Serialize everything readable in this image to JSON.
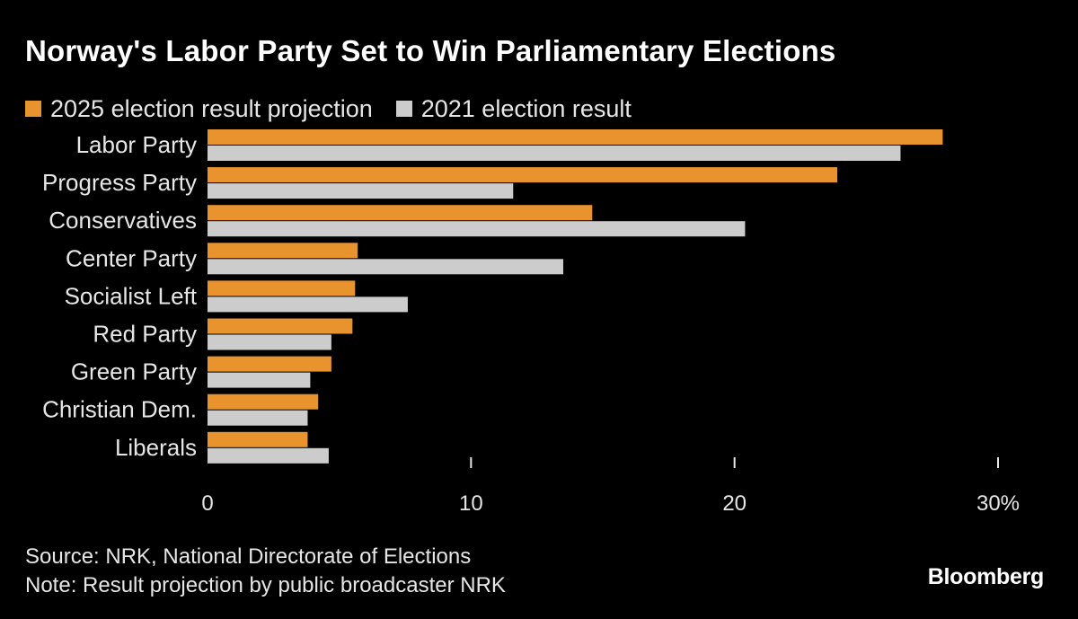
{
  "title": "Norway's Labor Party Set to Win Parliamentary Elections",
  "legend": {
    "series_2025": "2025 election result projection",
    "series_2021": "2021 election result"
  },
  "colors": {
    "series_2025": "#e8932e",
    "series_2021": "#cccccc",
    "background": "#000000",
    "text": "#e6e6e6"
  },
  "chart_data": {
    "type": "bar",
    "orientation": "horizontal",
    "title": "Norway's Labor Party Set to Win Parliamentary Elections",
    "categories": [
      "Labor Party",
      "Progress Party",
      "Conservatives",
      "Center Party",
      "Socialist Left",
      "Red Party",
      "Green Party",
      "Christian Dem.",
      "Liberals"
    ],
    "series": [
      {
        "name": "2025 election result projection",
        "values": [
          27.9,
          23.9,
          14.6,
          5.7,
          5.6,
          5.5,
          4.7,
          4.2,
          3.8
        ]
      },
      {
        "name": "2021 election result",
        "values": [
          26.3,
          11.6,
          20.4,
          13.5,
          7.6,
          4.7,
          3.9,
          3.8,
          4.6
        ]
      }
    ],
    "xlim": [
      0,
      30
    ],
    "ticks": [
      0,
      10,
      20,
      30
    ],
    "tick_labels": [
      "0",
      "10",
      "20",
      "30%"
    ],
    "xlabel": "",
    "ylabel": "",
    "legend_position": "top-left",
    "grid": false
  },
  "footer": {
    "source": "Source: NRK, National Directorate of Elections",
    "note": "Note: Result projection by public broadcaster NRK",
    "brand": "Bloomberg"
  }
}
